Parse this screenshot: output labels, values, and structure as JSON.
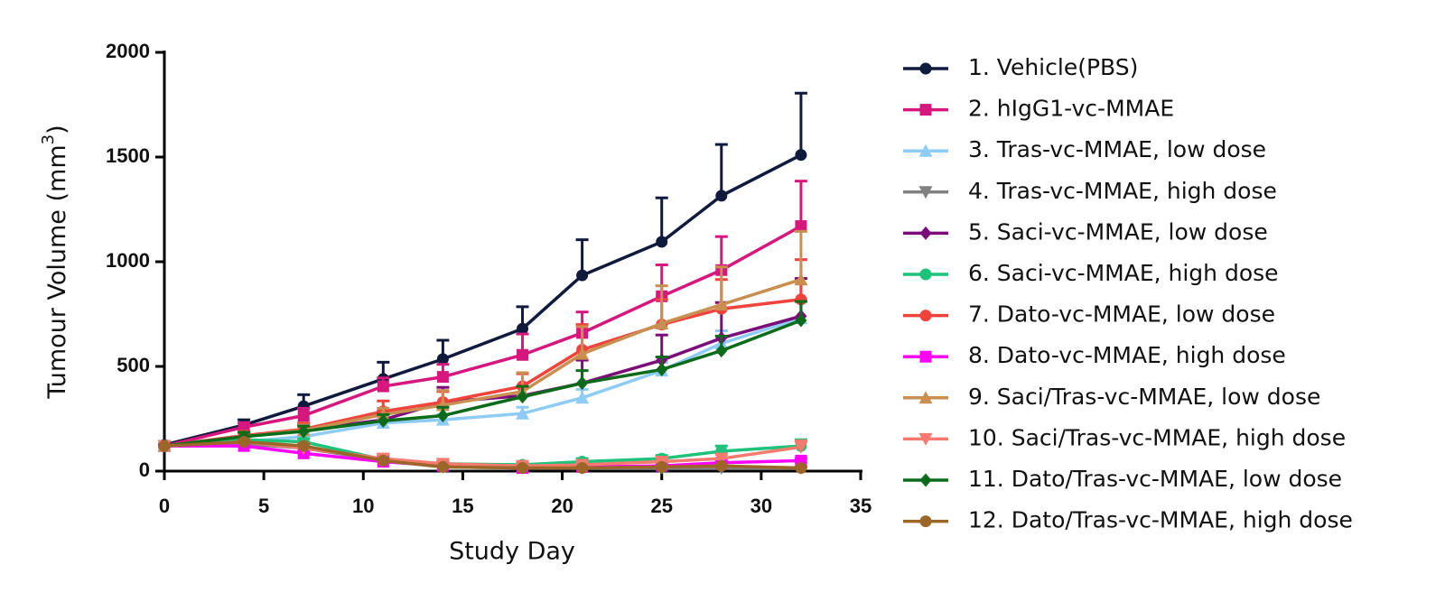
{
  "chart_data": {
    "type": "line",
    "x_label": "Study Day",
    "y_label": {
      "text": "Tumour Volume (mm",
      "superscript": "3",
      "suffix": ")"
    },
    "x": [
      0,
      4,
      7,
      11,
      14,
      18,
      21,
      25,
      28,
      32
    ],
    "xlim": [
      0,
      35
    ],
    "xticks": [
      0,
      5,
      10,
      15,
      20,
      25,
      30,
      35
    ],
    "ylim": [
      0,
      2000
    ],
    "yticks": [
      0,
      500,
      1000,
      1500,
      2000
    ],
    "series": [
      {
        "name": "1. Vehicle(PBS)",
        "color": "#0f1a3d",
        "marker": "circle",
        "values": [
          125,
          220,
          310,
          440,
          535,
          680,
          935,
          1095,
          1315,
          1510
        ],
        "errors": [
          0,
          25,
          55,
          80,
          90,
          105,
          170,
          210,
          245,
          295
        ]
      },
      {
        "name": "2. hIgG1-vc-MMAE",
        "color": "#d6177d",
        "marker": "square",
        "values": [
          120,
          210,
          265,
          405,
          450,
          555,
          660,
          835,
          960,
          1170
        ],
        "errors": [
          0,
          20,
          35,
          40,
          60,
          100,
          100,
          150,
          160,
          215
        ]
      },
      {
        "name": "3. Tras-vc-MMAE, low dose",
        "color": "#8ecbf5",
        "marker": "triangle-up",
        "values": [
          120,
          140,
          165,
          230,
          245,
          275,
          350,
          480,
          610,
          730
        ],
        "errors": [
          0,
          15,
          20,
          20,
          25,
          30,
          40,
          40,
          60,
          90
        ]
      },
      {
        "name": "4. Tras-vc-MMAE, high dose",
        "color": "#808080",
        "marker": "triangle-down",
        "values": [
          120,
          130,
          110,
          50,
          20,
          15,
          15,
          15,
          15,
          15
        ],
        "errors": [
          0,
          10,
          10,
          10,
          5,
          5,
          5,
          5,
          5,
          5
        ]
      },
      {
        "name": "5. Saci-vc-MMAE, low dose",
        "color": "#7b0d7b",
        "marker": "diamond",
        "values": [
          120,
          165,
          195,
          245,
          330,
          360,
          420,
          530,
          635,
          740
        ],
        "errors": [
          0,
          20,
          30,
          40,
          70,
          40,
          110,
          120,
          170,
          180
        ]
      },
      {
        "name": "6. Saci-vc-MMAE, high dose",
        "color": "#1ec27a",
        "marker": "circle",
        "values": [
          120,
          150,
          140,
          55,
          35,
          30,
          45,
          60,
          95,
          120
        ],
        "errors": [
          0,
          15,
          15,
          15,
          15,
          10,
          15,
          15,
          25,
          30
        ]
      },
      {
        "name": "7. Dato-vc-MMAE, low dose",
        "color": "#f0433c",
        "marker": "circle",
        "values": [
          120,
          170,
          200,
          285,
          330,
          405,
          580,
          700,
          775,
          820
        ],
        "errors": [
          0,
          20,
          30,
          50,
          50,
          60,
          120,
          120,
          140,
          190
        ]
      },
      {
        "name": "8. Dato-vc-MMAE, high dose",
        "color": "#ff00ff",
        "marker": "square",
        "values": [
          120,
          120,
          85,
          45,
          25,
          15,
          20,
          25,
          40,
          50
        ],
        "errors": [
          0,
          10,
          10,
          10,
          5,
          5,
          5,
          5,
          10,
          10
        ]
      },
      {
        "name": "9. Saci/Tras-vc-MMAE, low dose",
        "color": "#c98f50",
        "marker": "triangle-up",
        "values": [
          120,
          165,
          195,
          270,
          315,
          380,
          560,
          705,
          795,
          915
        ],
        "errors": [
          0,
          20,
          25,
          30,
          70,
          90,
          130,
          180,
          180,
          230
        ]
      },
      {
        "name": "10. Saci/Tras-vc-MMAE, high dose",
        "color": "#f77a6f",
        "marker": "triangle-down",
        "values": [
          120,
          140,
          110,
          60,
          35,
          25,
          30,
          45,
          60,
          115
        ],
        "errors": [
          0,
          15,
          15,
          20,
          15,
          10,
          10,
          15,
          20,
          30
        ]
      },
      {
        "name": "11. Dato/Tras-vc-MMAE, low dose",
        "color": "#0b6b1a",
        "marker": "diamond",
        "values": [
          120,
          165,
          190,
          240,
          265,
          355,
          420,
          485,
          575,
          720
        ],
        "errors": [
          0,
          20,
          25,
          30,
          40,
          50,
          60,
          60,
          70,
          90
        ]
      },
      {
        "name": "12. Dato/Tras-vc-MMAE, high dose",
        "color": "#9c6628",
        "marker": "circle",
        "values": [
          120,
          140,
          120,
          50,
          20,
          15,
          15,
          20,
          25,
          15
        ],
        "errors": [
          0,
          10,
          10,
          10,
          5,
          5,
          5,
          5,
          5,
          5
        ]
      }
    ]
  }
}
